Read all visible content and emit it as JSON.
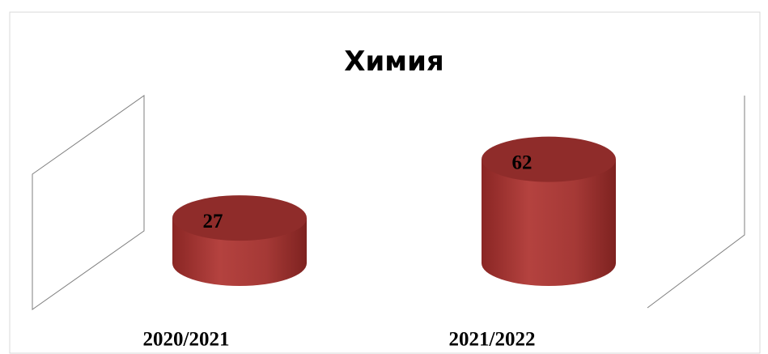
{
  "chart_data": {
    "type": "bar",
    "title": "Химия",
    "categories": [
      "2020/2021",
      "2021/2022"
    ],
    "values": [
      27,
      62
    ],
    "color": "#a83a37"
  }
}
